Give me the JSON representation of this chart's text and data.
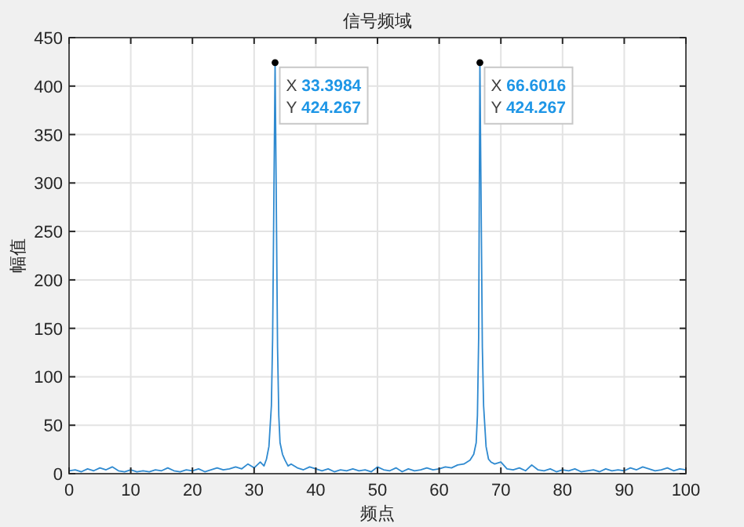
{
  "chart_data": {
    "type": "line",
    "title": "信号频域",
    "xlabel": "频点",
    "ylabel": "幅值",
    "xlim": [
      0,
      100
    ],
    "ylim": [
      0,
      450
    ],
    "xticks": [
      0,
      10,
      20,
      30,
      40,
      50,
      60,
      70,
      80,
      90,
      100
    ],
    "yticks": [
      0,
      50,
      100,
      150,
      200,
      250,
      300,
      350,
      400,
      450
    ],
    "grid": true,
    "series": [
      {
        "color": "#2f8ad0",
        "x": [
          0,
          1,
          2,
          3,
          4,
          5,
          6,
          7,
          8,
          9,
          10,
          11,
          12,
          13,
          14,
          15,
          16,
          17,
          18,
          19,
          20,
          21,
          22,
          23,
          24,
          25,
          26,
          27,
          28,
          29,
          30,
          31,
          31.6,
          32.0,
          32.4,
          32.8,
          33.0,
          33.3984,
          33.8,
          34.0,
          34.2,
          34.6,
          35,
          35.5,
          36,
          37,
          38,
          39,
          40,
          41,
          42,
          43,
          44,
          45,
          46,
          47,
          48,
          49,
          50,
          51,
          52,
          53,
          54,
          55,
          56,
          57,
          58,
          59,
          60,
          61,
          62,
          63,
          64,
          65,
          65.6,
          66.0,
          66.2,
          66.4,
          66.6016,
          67.0,
          67.2,
          67.6,
          68.0,
          68.4,
          69,
          70,
          71,
          72,
          73,
          74,
          75,
          76,
          77,
          78,
          79,
          80,
          81,
          82,
          83,
          84,
          85,
          86,
          87,
          88,
          89,
          90,
          91,
          92,
          93,
          94,
          95,
          96,
          97,
          98,
          99,
          100
        ],
        "values": [
          3,
          4,
          2,
          5,
          3,
          6,
          4,
          7,
          3,
          2,
          4,
          2,
          3,
          2,
          4,
          3,
          6,
          3,
          2,
          4,
          3,
          5,
          2,
          4,
          6,
          4,
          5,
          7,
          5,
          10,
          6,
          12,
          8,
          15,
          28,
          70,
          140,
          424.267,
          130,
          60,
          32,
          20,
          14,
          8,
          10,
          6,
          4,
          7,
          5,
          3,
          5,
          2,
          4,
          3,
          5,
          3,
          4,
          2,
          7,
          4,
          3,
          6,
          2,
          5,
          3,
          4,
          6,
          4,
          5,
          7,
          6,
          9,
          10,
          14,
          20,
          32,
          60,
          140,
          424.267,
          130,
          70,
          28,
          15,
          12,
          10,
          12,
          5,
          4,
          6,
          3,
          9,
          4,
          3,
          5,
          2,
          4,
          3,
          5,
          2,
          3,
          4,
          2,
          5,
          3,
          4,
          3,
          6,
          4,
          7,
          5,
          3,
          4,
          6,
          3,
          5,
          4
        ]
      }
    ],
    "annotations": [
      {
        "text": "X 33.3984\nY 424.267",
        "x": 33.3984,
        "y": 424.267
      },
      {
        "text": "X 66.6016\nY 424.267",
        "x": 66.6016,
        "y": 424.267
      }
    ]
  }
}
